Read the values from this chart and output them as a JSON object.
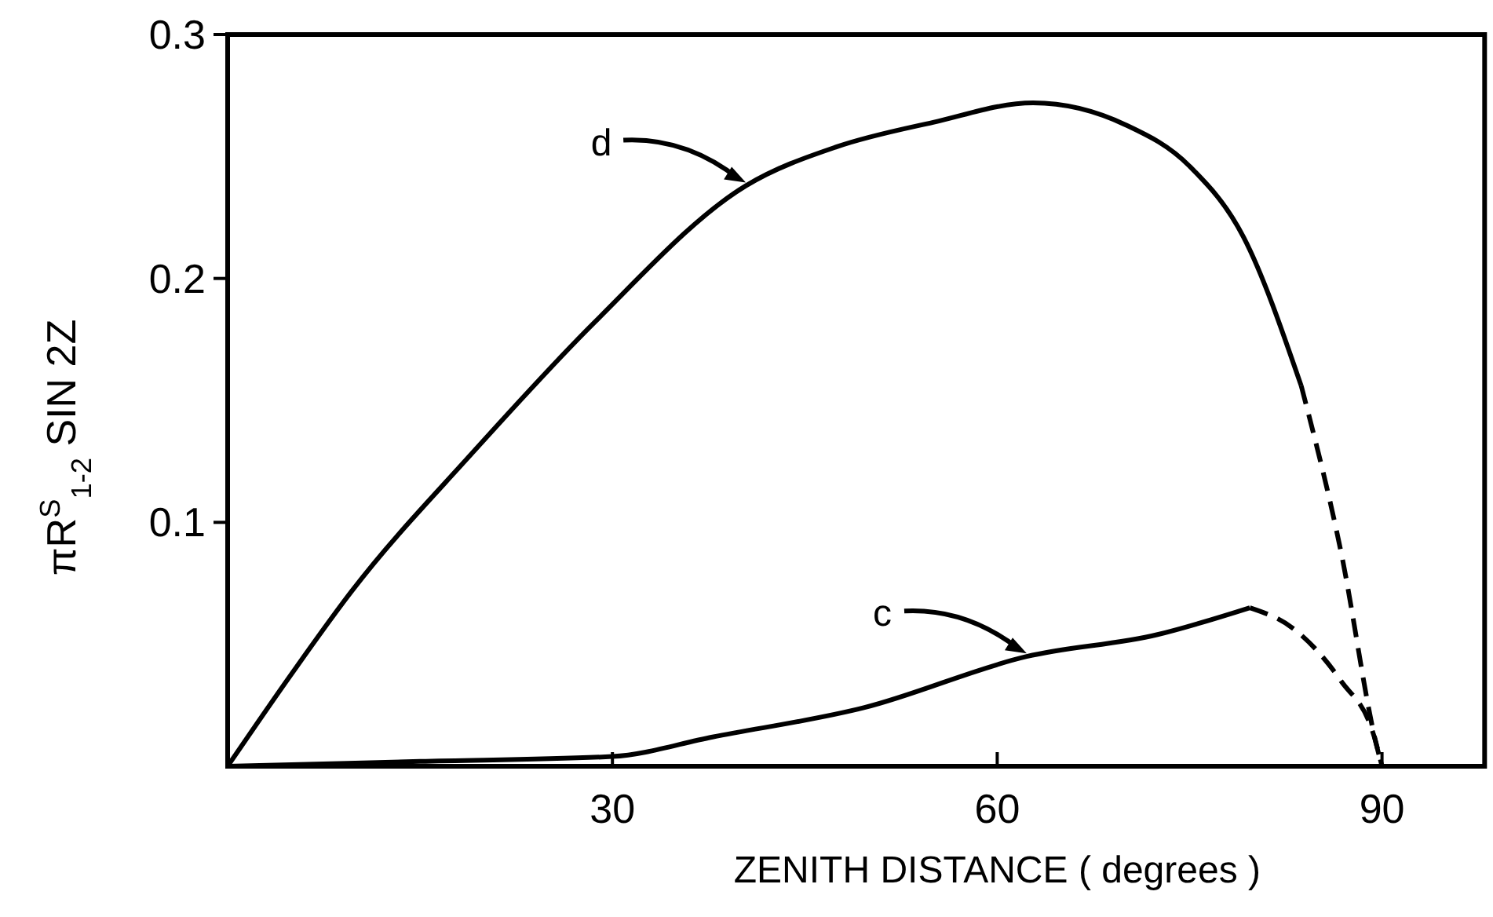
{
  "chart_data": {
    "type": "line",
    "xlabel": "ZENITH   DISTANCE ( degrees )",
    "ylabel": "πR$^{S}$$_{1-2}$ SIN 2Z",
    "xlim": [
      0,
      98
    ],
    "ylim": [
      0,
      0.3
    ],
    "xticks": [
      30,
      60,
      90
    ],
    "yticks": [
      0.1,
      0.2,
      0.3
    ],
    "grid": false,
    "marker": "none",
    "annotations": [
      {
        "text": "d",
        "x": 40.4,
        "y": 0.238
      },
      {
        "text": "c",
        "x": 62.3,
        "y": 0.045
      }
    ],
    "series": [
      {
        "color": "#000000",
        "line_style": "solid",
        "x": [
          0,
          5,
          9.7,
          19,
          28.6,
          40.4,
          47.5,
          55,
          62.8,
          70,
          75,
          79.2,
          83.7
        ],
        "values": [
          0,
          0.038,
          0.072,
          0.128,
          0.182,
          0.238,
          0.254,
          0.264,
          0.272,
          0.263,
          0.246,
          0.217,
          0.156
        ]
      },
      {
        "color": "#000000",
        "line_style": "dashed",
        "x": [
          83.7,
          86.8,
          89.6,
          90
        ],
        "values": [
          0.156,
          0.088,
          0.008,
          0
        ]
      },
      {
        "color": "#000000",
        "line_style": "solid",
        "x": [
          0,
          15,
          30,
          37.8,
          49.6,
          62.3,
          72.5,
          79.7
        ],
        "values": [
          0,
          0.002,
          0.004,
          0.012,
          0.024,
          0.045,
          0.054,
          0.065
        ]
      },
      {
        "color": "#000000",
        "line_style": "dashed",
        "x": [
          79.7,
          83.2,
          86.8,
          89.4,
          90
        ],
        "values": [
          0.065,
          0.056,
          0.035,
          0.012,
          0
        ]
      }
    ]
  }
}
